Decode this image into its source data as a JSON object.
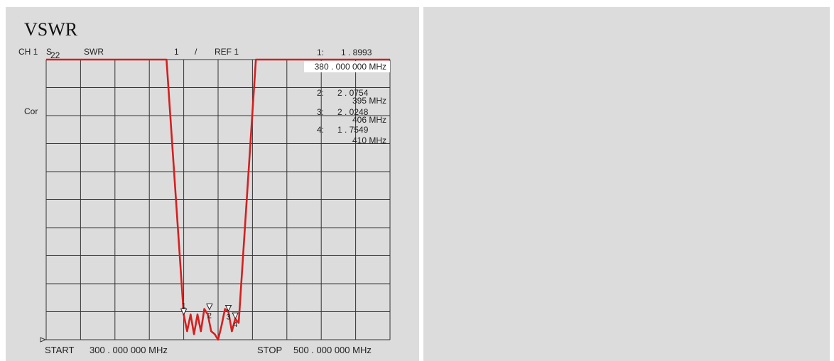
{
  "title": "VSWR",
  "header": {
    "channel": "CH 1",
    "param_main": "S",
    "param_sub": "22",
    "format": "SWR",
    "scale": "1",
    "slash": "/",
    "ref": "REF 1"
  },
  "side_label": "Cor",
  "footer": {
    "start_label": "START",
    "start_value": "300 . 000 000 MHz",
    "stop_label": "STOP",
    "stop_value": "500 . 000 000 MHz"
  },
  "markers": [
    {
      "id": "1",
      "label": "1:",
      "value": "1 . 8993",
      "freq": "380 . 000 000 MHz"
    },
    {
      "id": "2",
      "label": "2:",
      "value": "2 . 0754",
      "freq": "395  MHz"
    },
    {
      "id": "3",
      "label": "3:",
      "value": "2 . 0248",
      "freq": "406  MHz"
    },
    {
      "id": "4",
      "label": "4:",
      "value": "1 . 7549",
      "freq": "410  MHz"
    }
  ],
  "colors": {
    "trace": "#d42020",
    "grid": "#333333",
    "panel": "#dcdcdc"
  },
  "chart_data": {
    "type": "line",
    "x_unit": "MHz",
    "xlim": [
      300,
      500
    ],
    "ylim": [
      1,
      11
    ],
    "ref_value": 1,
    "scale_per_div": 1,
    "grid": true,
    "x_divisions": 10,
    "y_divisions": 10,
    "series": [
      {
        "x": [
          300,
          370,
          380,
          382,
          384,
          386,
          388,
          390,
          392,
          394,
          396,
          398,
          400,
          402,
          404,
          406,
          408,
          410,
          412,
          422,
          500
        ],
        "y": [
          11,
          11,
          1.9,
          1.3,
          1.9,
          1.2,
          1.9,
          1.3,
          2.1,
          1.9,
          1.3,
          1.2,
          1.0,
          1.5,
          2.1,
          2.0,
          1.3,
          1.75,
          1.6,
          11,
          11
        ]
      }
    ]
  }
}
